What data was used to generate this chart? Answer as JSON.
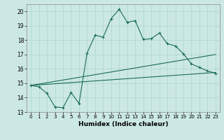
{
  "title": "",
  "xlabel": "Humidex (Indice chaleur)",
  "background_color": "#cce8e4",
  "line_color": "#1a6b5a",
  "grid_color": "#aad4d0",
  "xlim": [
    -0.5,
    23.5
  ],
  "ylim": [
    13,
    20.5
  ],
  "xticks": [
    0,
    1,
    2,
    3,
    4,
    5,
    6,
    7,
    8,
    9,
    10,
    11,
    12,
    13,
    14,
    15,
    16,
    17,
    18,
    19,
    20,
    21,
    22,
    23
  ],
  "yticks": [
    13,
    14,
    15,
    16,
    17,
    18,
    19,
    20
  ],
  "line1_x": [
    0,
    1,
    2,
    3,
    4,
    5,
    6,
    7,
    8,
    9,
    10,
    11,
    12,
    13,
    14,
    15,
    16,
    17,
    18,
    19,
    20,
    21,
    22,
    23
  ],
  "line1_y": [
    14.85,
    14.75,
    14.3,
    13.35,
    13.3,
    14.35,
    13.6,
    17.1,
    18.35,
    18.2,
    19.5,
    20.15,
    19.25,
    19.35,
    18.05,
    18.1,
    18.5,
    17.75,
    17.6,
    17.05,
    16.35,
    16.1,
    15.85,
    15.7
  ],
  "line2_x": [
    0,
    23
  ],
  "line2_y": [
    14.85,
    17.0
  ],
  "line3_x": [
    0,
    23
  ],
  "line3_y": [
    14.85,
    15.75
  ]
}
